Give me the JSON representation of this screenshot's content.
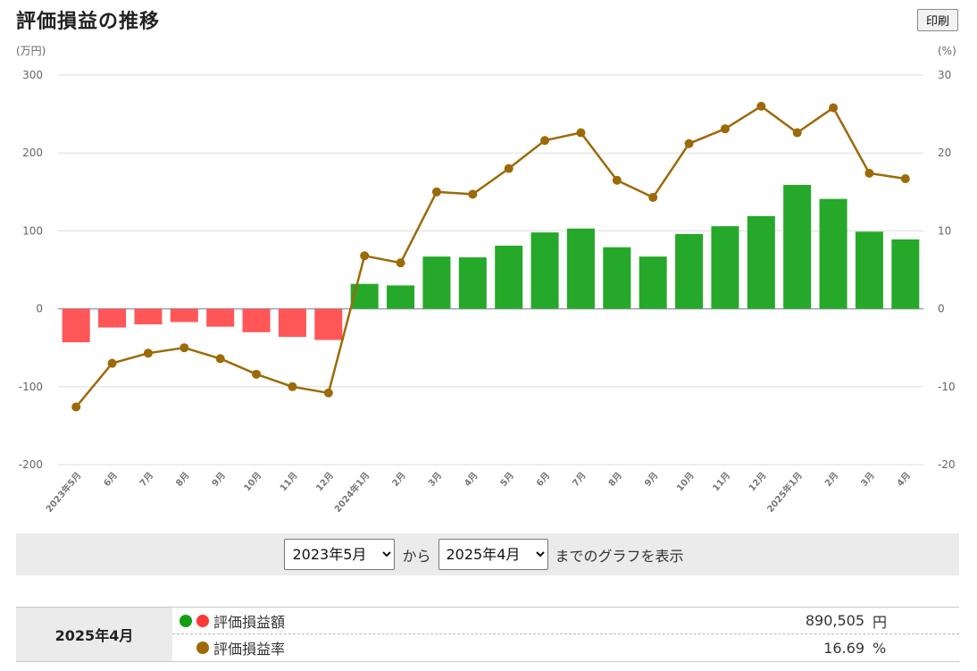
{
  "title": "評価損益の推移",
  "print_label": "印刷",
  "colors": {
    "positive_bar": "#26a82a",
    "negative_bar": "#ff5657",
    "line": "#9c6a08",
    "green_dot": "#12a012",
    "red_dot": "#ff3838",
    "grid": "#dddddd",
    "axis_text": "#666666"
  },
  "chart_data": {
    "type": "bar+line",
    "left_axis": {
      "unit_label": "(万円)",
      "ticks": [
        300,
        200,
        100,
        0,
        -100,
        -200
      ],
      "range": [
        -200,
        300
      ]
    },
    "right_axis": {
      "unit_label": "(%)",
      "ticks": [
        30,
        20,
        10,
        0,
        -10,
        -20
      ],
      "range": [
        -20,
        30
      ]
    },
    "categories": [
      "2023年5月",
      "6月",
      "7月",
      "8月",
      "9月",
      "10月",
      "11月",
      "12月",
      "2024年1月",
      "2月",
      "3月",
      "4月",
      "5月",
      "6月",
      "7月",
      "8月",
      "9月",
      "10月",
      "11月",
      "12月",
      "2025年1月",
      "2月",
      "3月",
      "4月"
    ],
    "series": [
      {
        "name": "評価損益額",
        "type": "bar",
        "axis": "left",
        "values": [
          -43,
          -24,
          -20,
          -17,
          -23,
          -30,
          -36,
          -40,
          32,
          30,
          67,
          66,
          81,
          98,
          103,
          79,
          67,
          96,
          106,
          119,
          159,
          141,
          99,
          89
        ]
      },
      {
        "name": "評価損益率",
        "type": "line",
        "axis": "right",
        "values": [
          -12.6,
          -7.0,
          -5.7,
          -5.0,
          -6.4,
          -8.4,
          -10.0,
          -10.8,
          6.8,
          5.9,
          15.0,
          14.7,
          18.0,
          21.6,
          22.6,
          16.5,
          14.3,
          21.2,
          23.1,
          26.0,
          22.6,
          25.8,
          17.4,
          16.7
        ]
      }
    ]
  },
  "range": {
    "from_selected": "2023年5月",
    "connector": "から",
    "to_selected": "2025年4月",
    "suffix": "までのグラフを表示"
  },
  "summary": {
    "month": "2025年4月",
    "rows": [
      {
        "label": "評価損益額",
        "value": "890,505",
        "unit": "円"
      },
      {
        "label": "評価損益率",
        "value": "16.69",
        "unit": "%"
      }
    ]
  }
}
